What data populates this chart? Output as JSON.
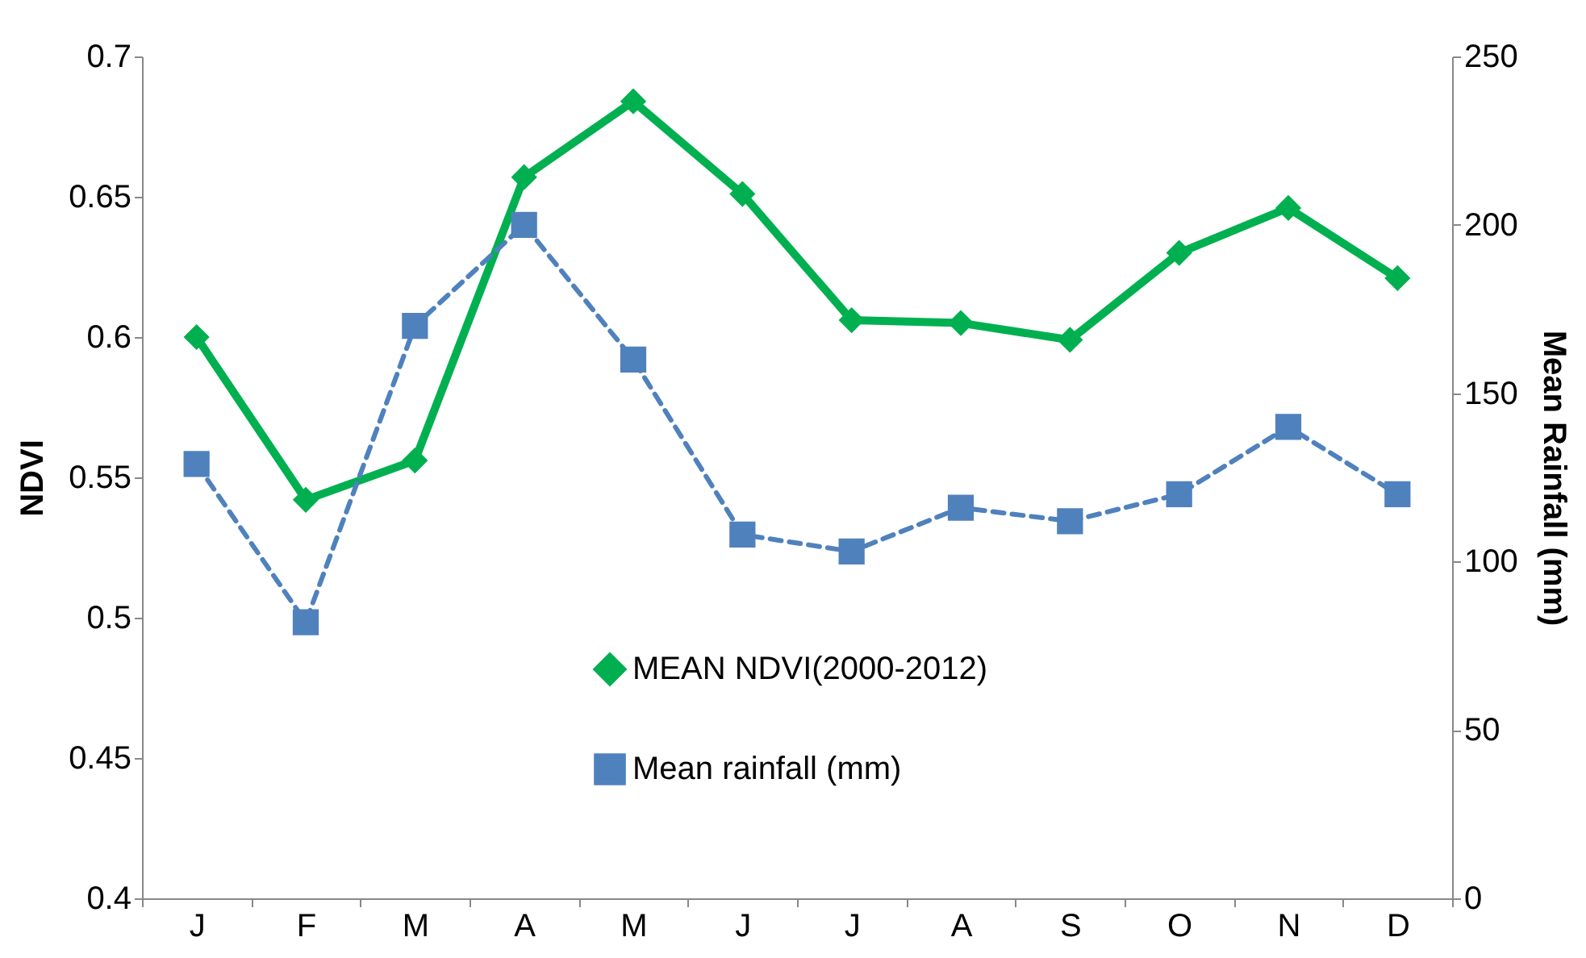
{
  "chart_data": {
    "type": "line",
    "ylabel": "NDVI",
    "y2label": "Mean Rainfall (mm)",
    "categories": [
      "J",
      "F",
      "M",
      "A",
      "M",
      "J",
      "J",
      "A",
      "S",
      "O",
      "N",
      "D"
    ],
    "series": [
      {
        "name": "MEAN NDVI(2000-2012)",
        "color": "#00b050",
        "marker": "diamond",
        "line_style": "solid",
        "values": [
          0.6,
          0.542,
          0.556,
          0.657,
          0.684,
          0.651,
          0.606,
          0.605,
          0.599,
          0.63,
          0.646,
          0.621
        ]
      },
      {
        "name": "Mean rainfall (mm)",
        "color": "#4f81bd",
        "marker": "square",
        "line_style": "dashed",
        "axis": "y2",
        "values": [
          129,
          82,
          170,
          200,
          160,
          108,
          103,
          116,
          112,
          120,
          140,
          120
        ]
      }
    ],
    "ylim": [
      0.4,
      0.7
    ],
    "yticks": [
      0.4,
      0.45,
      0.5,
      0.55,
      0.6,
      0.65,
      0.7
    ],
    "y2lim": [
      0,
      250
    ],
    "y2ticks": [
      0,
      50,
      100,
      150,
      200,
      250
    ],
    "grid": false,
    "legend": "bottom"
  }
}
